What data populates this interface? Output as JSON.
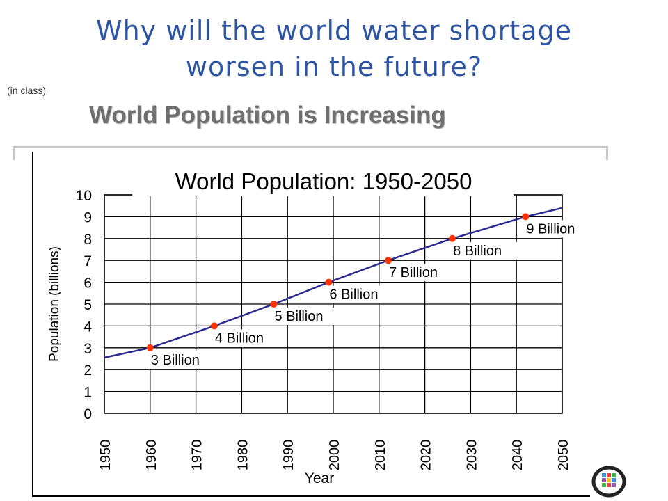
{
  "slide": {
    "title_line1": "Why will the world water shortage",
    "title_line2": "worsen in the future?",
    "note": "(in class)",
    "banner": "World Population is Increasing"
  },
  "colors": {
    "title": "#2e55a3",
    "line": "#2a2a8f",
    "marker": "#ff3300",
    "grid": "#000000"
  },
  "chart_data": {
    "type": "line",
    "title": "World Population: 1950-2050",
    "xlabel": "Year",
    "ylabel": "Population (billions)",
    "xlim": [
      1950,
      2050
    ],
    "ylim": [
      0,
      10
    ],
    "x_ticks": [
      1950,
      1960,
      1970,
      1980,
      1990,
      2000,
      2010,
      2020,
      2030,
      2040,
      2050
    ],
    "y_ticks": [
      0,
      1,
      2,
      3,
      4,
      5,
      6,
      7,
      8,
      9,
      10
    ],
    "grid": true,
    "series": [
      {
        "x": [
          1950,
          1960,
          1974,
          1987,
          1999,
          2012,
          2026,
          2042,
          2050
        ],
        "y": [
          2.55,
          3.0,
          4.0,
          5.0,
          6.0,
          7.0,
          8.0,
          9.0,
          9.4
        ]
      }
    ],
    "milestones": [
      {
        "x": 1960,
        "y": 3,
        "label": "3 Billion"
      },
      {
        "x": 1974,
        "y": 4,
        "label": "4 Billion"
      },
      {
        "x": 1987,
        "y": 5,
        "label": "5 Billion"
      },
      {
        "x": 1999,
        "y": 6,
        "label": "6 Billion"
      },
      {
        "x": 2012,
        "y": 7,
        "label": "7 Billion"
      },
      {
        "x": 2026,
        "y": 8,
        "label": "8 Billion"
      },
      {
        "x": 2042,
        "y": 9,
        "label": "9 Billion"
      }
    ]
  }
}
